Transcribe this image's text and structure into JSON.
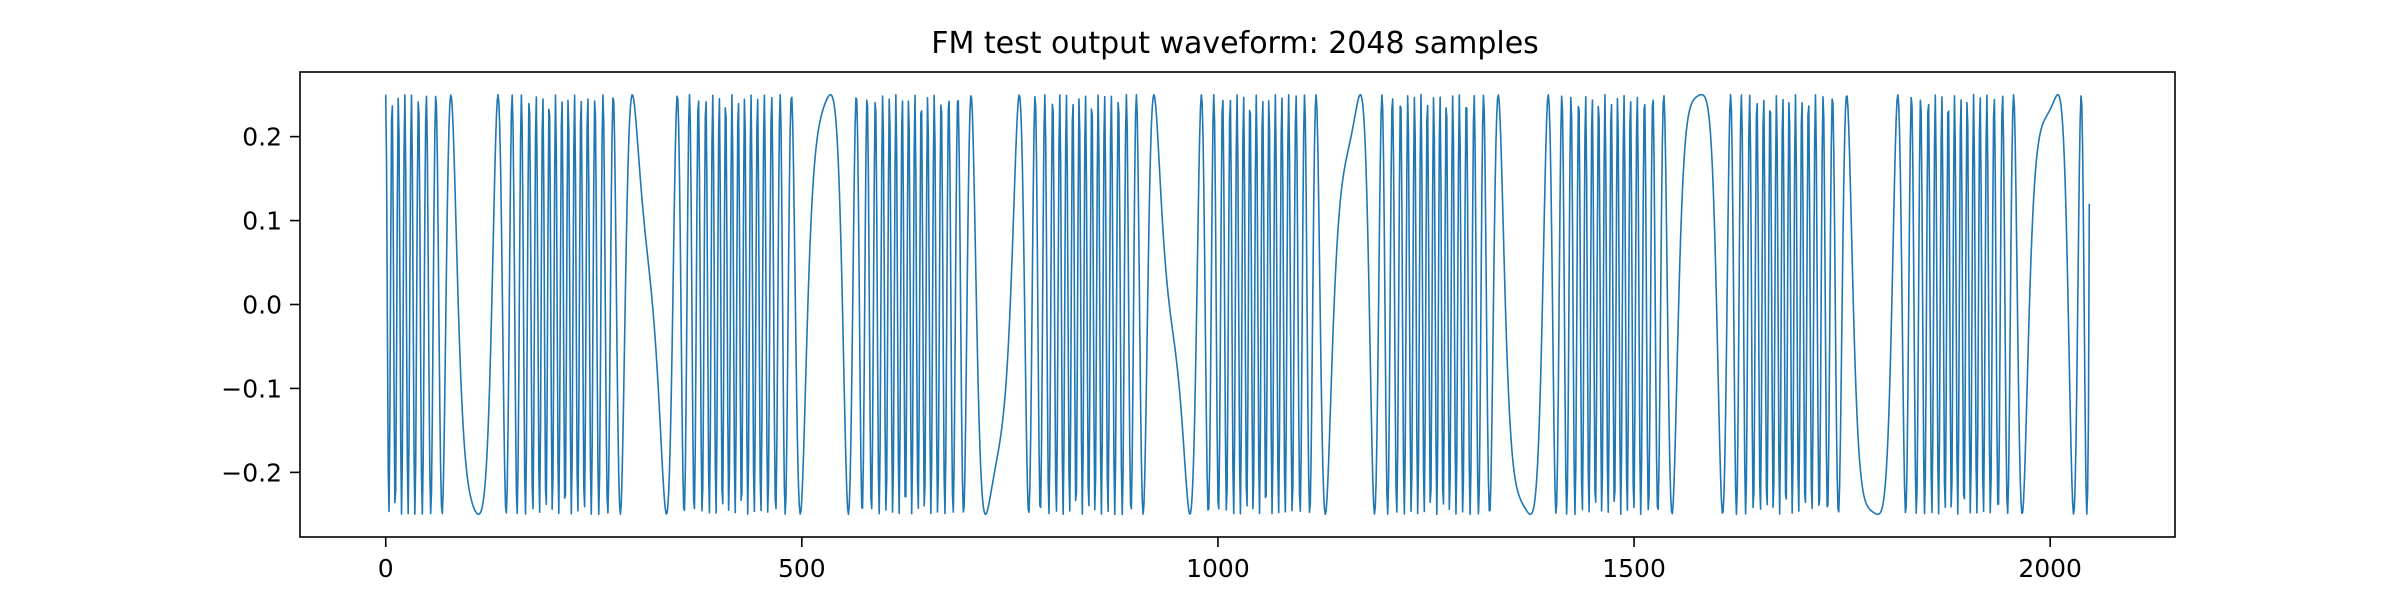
{
  "chart_data": {
    "type": "line",
    "title": "FM test output waveform: 2048 samples",
    "xlabel": "",
    "ylabel": "",
    "xlim": [
      -103,
      2150
    ],
    "ylim": [
      -0.277,
      0.277
    ],
    "x_ticks": [
      0,
      500,
      1000,
      1500,
      2000
    ],
    "x_tick_labels": [
      "0",
      "500",
      "1000",
      "1500",
      "2000"
    ],
    "y_ticks": [
      -0.2,
      -0.1,
      0.0,
      0.1,
      0.2
    ],
    "y_tick_labels": [
      "−0.2",
      "−0.1",
      "0.0",
      "0.1",
      "0.2"
    ],
    "grid": false,
    "legend": "none",
    "series": [
      {
        "color": "#1f77b4",
        "num_samples": 2048,
        "amplitude": 0.25,
        "final_value": 0.12
      }
    ]
  }
}
